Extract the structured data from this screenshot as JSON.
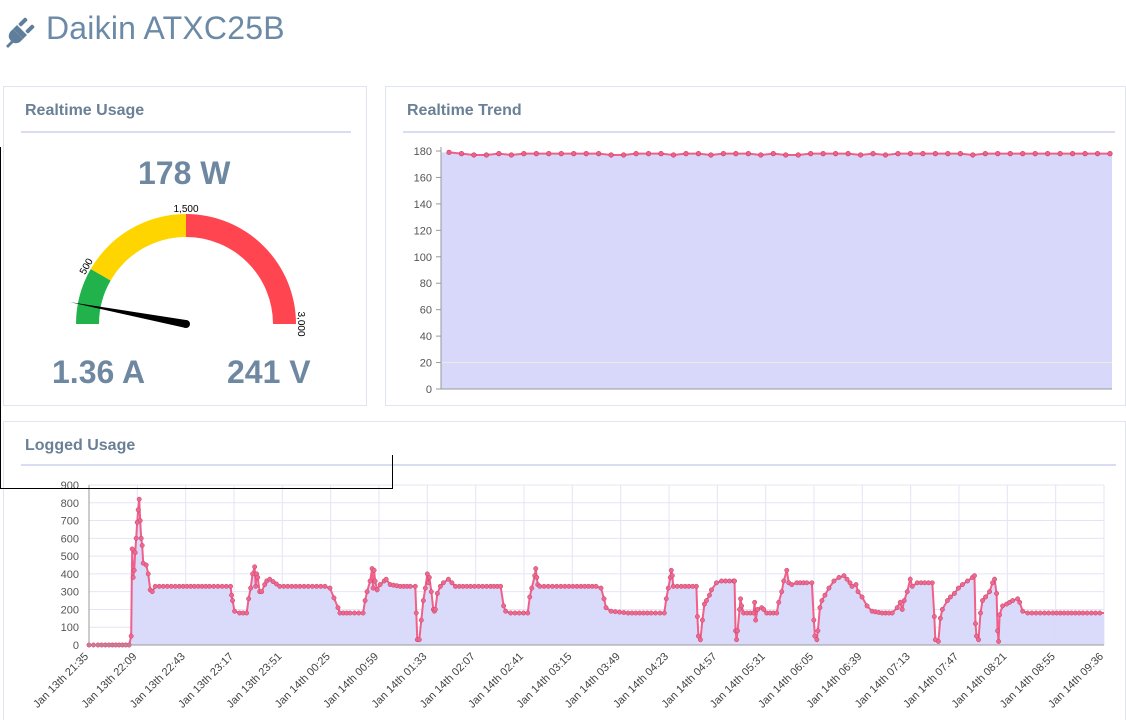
{
  "header": {
    "title": "Daikin ATXC25B",
    "icon": "plug-icon"
  },
  "realtime_usage": {
    "title": "Realtime Usage",
    "power": "178 W",
    "current": "1.36 A",
    "voltage": "241 V",
    "gauge": {
      "min": 0,
      "max": 3000,
      "value": 178,
      "bands": [
        {
          "from": 0,
          "to": 500,
          "color": "#22b24c"
        },
        {
          "from": 500,
          "to": 1500,
          "color": "#ffd500"
        },
        {
          "from": 1500,
          "to": 3000,
          "color": "#ff4550"
        }
      ],
      "labels": [
        "500",
        "1,500",
        "3,000"
      ]
    }
  },
  "realtime_trend": {
    "title": "Realtime Trend",
    "yticks": [
      "180",
      "160",
      "140",
      "120",
      "100",
      "80",
      "60",
      "40",
      "20",
      "0"
    ],
    "colors": {
      "line": "#f0608a",
      "fill": "#d8d8fb"
    }
  },
  "logged_usage": {
    "title": "Logged Usage",
    "yticks": [
      "900",
      "800",
      "700",
      "600",
      "500",
      "400",
      "300",
      "200",
      "100",
      "0"
    ],
    "xticks": [
      "Jan 13th 21:35",
      "Jan 13th 22:09",
      "Jan 13th 22:43",
      "Jan 13th 23:17",
      "Jan 13th 23:51",
      "Jan 14th 00:25",
      "Jan 14th 00:59",
      "Jan 14th 01:33",
      "Jan 14th 02:07",
      "Jan 14th 02:41",
      "Jan 14th 03:15",
      "Jan 14th 03:49",
      "Jan 14th 04:23",
      "Jan 14th 04:57",
      "Jan 14th 05:31",
      "Jan 14th 06:05",
      "Jan 14th 06:39",
      "Jan 14th 07:13",
      "Jan 14th 07:47",
      "Jan 14th 08:21",
      "Jan 14th 08:55",
      "Jan 14th 09:36"
    ]
  },
  "chart_data": [
    {
      "type": "area",
      "title": "Realtime Trend",
      "ylim": [
        0,
        180
      ],
      "values": [
        179,
        178,
        177,
        177,
        178,
        177,
        178,
        178,
        178,
        178,
        178,
        178,
        178,
        177,
        177,
        178,
        178,
        178,
        177,
        178,
        178,
        177,
        178,
        178,
        178,
        177,
        178,
        177,
        177,
        178,
        178,
        178,
        178,
        177,
        178,
        177,
        178,
        178,
        178,
        178,
        178,
        178,
        177,
        178,
        178,
        178,
        178,
        178,
        178,
        178,
        178,
        178,
        178,
        178
      ]
    },
    {
      "type": "area",
      "title": "Logged Usage",
      "ylim": [
        0,
        900
      ],
      "x_range": [
        "Jan 13th 21:35",
        "Jan 14th 09:36"
      ],
      "points": [
        [
          0,
          0
        ],
        [
          9,
          0
        ],
        [
          20,
          0
        ],
        [
          30,
          0
        ],
        [
          40,
          0
        ],
        [
          42,
          50
        ],
        [
          43,
          540
        ],
        [
          44,
          380
        ],
        [
          45,
          420
        ],
        [
          46,
          520
        ],
        [
          47,
          600
        ],
        [
          48,
          690
        ],
        [
          49,
          760
        ],
        [
          50,
          820
        ],
        [
          51,
          700
        ],
        [
          52,
          600
        ],
        [
          53,
          560
        ],
        [
          54,
          460
        ],
        [
          57,
          450
        ],
        [
          59,
          400
        ],
        [
          61,
          310
        ],
        [
          63,
          300
        ],
        [
          66,
          330
        ],
        [
          90,
          330
        ],
        [
          120,
          330
        ],
        [
          141,
          330
        ],
        [
          142,
          280
        ],
        [
          143,
          250
        ],
        [
          145,
          190
        ],
        [
          150,
          180
        ],
        [
          157,
          180
        ],
        [
          159,
          260
        ],
        [
          161,
          320
        ],
        [
          163,
          400
        ],
        [
          165,
          440
        ],
        [
          166,
          330
        ],
        [
          167,
          400
        ],
        [
          168,
          380
        ],
        [
          170,
          300
        ],
        [
          172,
          300
        ],
        [
          175,
          340
        ],
        [
          177,
          360
        ],
        [
          180,
          370
        ],
        [
          190,
          330
        ],
        [
          210,
          330
        ],
        [
          235,
          330
        ],
        [
          240,
          320
        ],
        [
          248,
          210
        ],
        [
          250,
          180
        ],
        [
          260,
          180
        ],
        [
          273,
          180
        ],
        [
          275,
          250
        ],
        [
          277,
          300
        ],
        [
          280,
          360
        ],
        [
          282,
          430
        ],
        [
          283,
          320
        ],
        [
          284,
          420
        ],
        [
          285,
          360
        ],
        [
          287,
          310
        ],
        [
          290,
          340
        ],
        [
          294,
          360
        ],
        [
          296,
          370
        ],
        [
          300,
          340
        ],
        [
          310,
          330
        ],
        [
          320,
          330
        ],
        [
          325,
          330
        ],
        [
          326,
          180
        ],
        [
          327,
          30
        ],
        [
          329,
          30
        ],
        [
          331,
          140
        ],
        [
          333,
          250
        ],
        [
          335,
          320
        ],
        [
          337,
          400
        ],
        [
          338,
          350
        ],
        [
          339,
          380
        ],
        [
          341,
          300
        ],
        [
          343,
          200
        ],
        [
          344,
          190
        ],
        [
          345,
          200
        ],
        [
          347,
          290
        ],
        [
          350,
          330
        ],
        [
          353,
          350
        ],
        [
          358,
          370
        ],
        [
          365,
          330
        ],
        [
          380,
          330
        ],
        [
          400,
          330
        ],
        [
          410,
          330
        ],
        [
          413,
          220
        ],
        [
          415,
          190
        ],
        [
          420,
          180
        ],
        [
          437,
          180
        ],
        [
          439,
          270
        ],
        [
          441,
          320
        ],
        [
          444,
          390
        ],
        [
          445,
          430
        ],
        [
          446,
          380
        ],
        [
          447,
          340
        ],
        [
          449,
          330
        ],
        [
          470,
          330
        ],
        [
          490,
          330
        ],
        [
          505,
          330
        ],
        [
          510,
          320
        ],
        [
          513,
          260
        ],
        [
          515,
          210
        ],
        [
          520,
          190
        ],
        [
          537,
          180
        ],
        [
          560,
          180
        ],
        [
          573,
          180
        ],
        [
          575,
          260
        ],
        [
          577,
          320
        ],
        [
          579,
          380
        ],
        [
          580,
          420
        ],
        [
          581,
          390
        ],
        [
          582,
          330
        ],
        [
          590,
          330
        ],
        [
          605,
          330
        ],
        [
          606,
          160
        ],
        [
          607,
          50
        ],
        [
          609,
          30
        ],
        [
          611,
          140
        ],
        [
          613,
          230
        ],
        [
          615,
          250
        ],
        [
          618,
          280
        ],
        [
          620,
          310
        ],
        [
          625,
          350
        ],
        [
          630,
          360
        ],
        [
          642,
          360
        ],
        [
          643,
          360
        ],
        [
          644,
          80
        ],
        [
          645,
          30
        ],
        [
          646,
          80
        ],
        [
          648,
          200
        ],
        [
          649,
          260
        ],
        [
          650,
          220
        ],
        [
          652,
          180
        ],
        [
          662,
          180
        ],
        [
          663,
          240
        ],
        [
          664,
          140
        ],
        [
          666,
          200
        ],
        [
          670,
          210
        ],
        [
          672,
          200
        ],
        [
          675,
          180
        ],
        [
          685,
          180
        ],
        [
          687,
          240
        ],
        [
          690,
          300
        ],
        [
          692,
          360
        ],
        [
          695,
          420
        ],
        [
          697,
          350
        ],
        [
          700,
          340
        ],
        [
          705,
          350
        ],
        [
          715,
          350
        ],
        [
          720,
          350
        ],
        [
          722,
          140
        ],
        [
          723,
          50
        ],
        [
          725,
          30
        ],
        [
          726,
          80
        ],
        [
          728,
          210
        ],
        [
          730,
          250
        ],
        [
          733,
          280
        ],
        [
          737,
          320
        ],
        [
          742,
          360
        ],
        [
          747,
          380
        ],
        [
          752,
          390
        ],
        [
          758,
          350
        ],
        [
          760,
          330
        ],
        [
          764,
          340
        ],
        [
          766,
          300
        ],
        [
          770,
          270
        ],
        [
          775,
          220
        ],
        [
          780,
          190
        ],
        [
          790,
          180
        ],
        [
          800,
          180
        ],
        [
          805,
          210
        ],
        [
          808,
          240
        ],
        [
          810,
          200
        ],
        [
          812,
          250
        ],
        [
          815,
          300
        ],
        [
          818,
          370
        ],
        [
          820,
          330
        ],
        [
          825,
          350
        ],
        [
          840,
          350
        ],
        [
          842,
          160
        ],
        [
          843,
          30
        ],
        [
          846,
          20
        ],
        [
          848,
          150
        ],
        [
          850,
          200
        ],
        [
          855,
          250
        ],
        [
          858,
          270
        ],
        [
          862,
          290
        ],
        [
          866,
          320
        ],
        [
          870,
          340
        ],
        [
          875,
          360
        ],
        [
          880,
          380
        ],
        [
          882,
          390
        ],
        [
          883,
          120
        ],
        [
          884,
          50
        ],
        [
          886,
          30
        ],
        [
          888,
          180
        ],
        [
          890,
          250
        ],
        [
          893,
          270
        ],
        [
          897,
          300
        ],
        [
          900,
          350
        ],
        [
          902,
          370
        ],
        [
          904,
          290
        ],
        [
          905,
          80
        ],
        [
          906,
          20
        ],
        [
          907,
          170
        ],
        [
          910,
          220
        ],
        [
          914,
          230
        ],
        [
          920,
          250
        ],
        [
          925,
          260
        ],
        [
          927,
          240
        ],
        [
          930,
          190
        ],
        [
          935,
          180
        ],
        [
          960,
          180
        ],
        [
          990,
          180
        ],
        [
          1011,
          180
        ]
      ]
    }
  ]
}
